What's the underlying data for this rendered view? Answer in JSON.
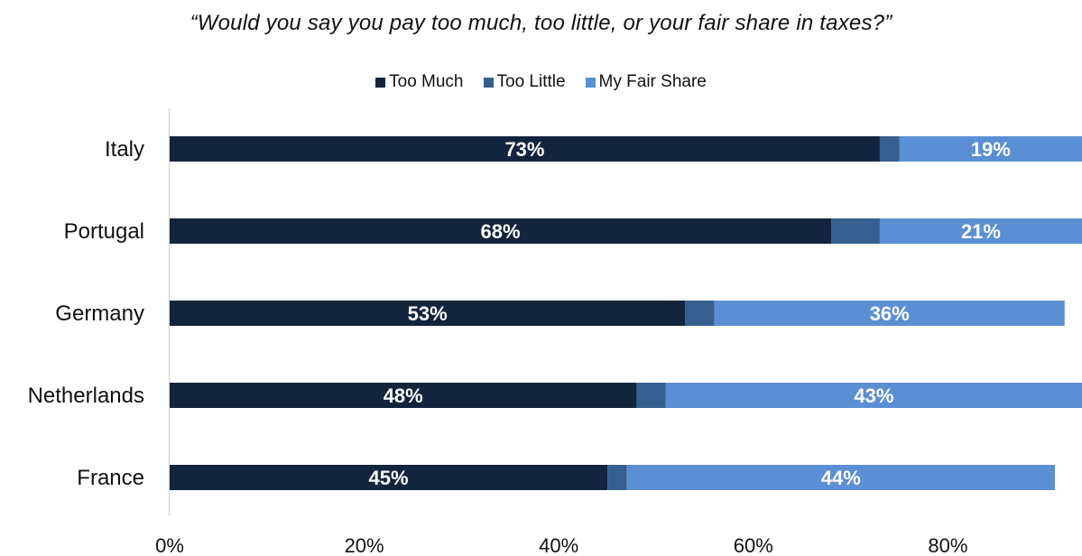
{
  "chart_data": {
    "type": "bar",
    "orientation": "horizontal",
    "stacked": true,
    "title": "“Would you say you pay too much, too little, or your fair share in taxes?”",
    "categories": [
      "Italy",
      "Portugal",
      "Germany",
      "Netherlands",
      "France"
    ],
    "series": [
      {
        "name": "Too Much",
        "color": "#13243d",
        "values": [
          73,
          68,
          53,
          48,
          45
        ],
        "labels": [
          "73%",
          "68%",
          "53%",
          "48%",
          "45%"
        ]
      },
      {
        "name": "Too Little",
        "color": "#355f8f",
        "values": [
          2,
          5,
          3,
          3,
          2
        ],
        "labels": [
          "",
          "",
          "",
          "",
          ""
        ]
      },
      {
        "name": "My Fair Share",
        "color": "#5b8fd4",
        "values": [
          19,
          21,
          36,
          43,
          44
        ],
        "labels": [
          "19%",
          "21%",
          "36%",
          "43%",
          "44%"
        ]
      }
    ],
    "x_ticks": [
      "0%",
      "20%",
      "40%",
      "60%",
      "80%"
    ],
    "x_tick_values": [
      0,
      20,
      40,
      60,
      80
    ],
    "xlim": [
      0,
      94
    ],
    "grid": false,
    "legend_position": "top"
  }
}
